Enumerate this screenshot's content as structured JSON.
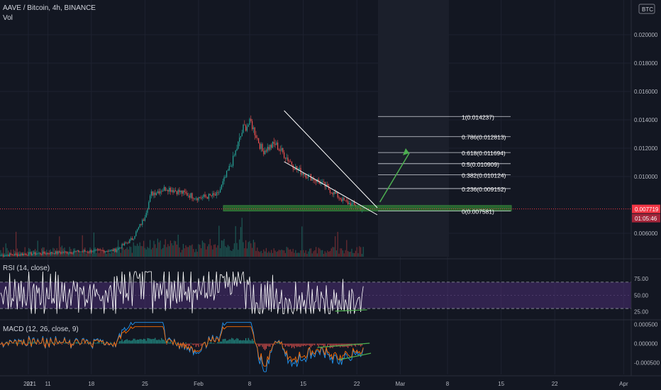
{
  "header": {
    "title": "AAVE / Bitcoin, 4h, BINANCE",
    "vol_label": "Vol",
    "currency_badge": "BTC"
  },
  "price_axis": {
    "ticks": [
      "0.020000",
      "0.018000",
      "0.016000",
      "0.014000",
      "0.012000",
      "0.010000",
      "0.006000"
    ],
    "tick_values": [
      0.02,
      0.018,
      0.016,
      0.014,
      0.012,
      0.01,
      0.006
    ],
    "ylim": [
      0.0043,
      0.0222
    ],
    "last_price": "0.007719",
    "countdown": "01:05:46"
  },
  "time_axis": {
    "labels": [
      "21",
      "2021",
      "11",
      "18",
      "25",
      "Feb",
      "8",
      "15",
      "22",
      "Mar",
      "8",
      "15",
      "22",
      "Apr"
    ],
    "label_bar_index": [
      -100,
      -17,
      37,
      71,
      113,
      155,
      195,
      237,
      279,
      313,
      350,
      392,
      434,
      488
    ]
  },
  "fib_levels": [
    {
      "label": "1(0.014237)",
      "value": 0.014237
    },
    {
      "label": "0.786(0.012813)",
      "value": 0.012813
    },
    {
      "label": "0.618(0.011694)",
      "value": 0.011694
    },
    {
      "label": "0.5(0.010909)",
      "value": 0.010909
    },
    {
      "label": "0.382(0.010124)",
      "value": 0.010124
    },
    {
      "label": "0.236(0.009152)",
      "value": 0.009152
    },
    {
      "label": "0(0.007581)",
      "value": 0.007581
    }
  ],
  "support_zone": {
    "from": 0.00757,
    "to": 0.00796
  },
  "channel": {
    "upper": [
      [
        222,
        0.01465
      ],
      [
        295,
        0.0078
      ]
    ],
    "lower": [
      [
        222,
        0.01105
      ],
      [
        295,
        0.0073
      ]
    ]
  },
  "arrow": {
    "from": [
      297,
      0.0082
    ],
    "to": [
      320,
      0.01165
    ]
  },
  "rsi": {
    "label": "RSI (14, close)",
    "ticks": [
      "75.00",
      "50.00",
      "25.00"
    ],
    "band": [
      30,
      70
    ],
    "ylim": [
      15,
      100
    ]
  },
  "macd": {
    "label": "MACD (12, 26, close, 9)",
    "ticks": [
      "0.000500",
      "0.000000",
      "-0.000500"
    ],
    "ylim": [
      -0.0008,
      0.0006
    ]
  },
  "colors": {
    "background": "#131722",
    "up": "#26a69a",
    "down": "#ef5350",
    "rsi_band": "#4a2d73",
    "support": "#2e7d32",
    "fib_line": "#d1d4dc",
    "price_label_bg": "#f23645",
    "arrow": "#4caf50"
  },
  "chart_data": {
    "type": "candlestick",
    "title": "AAVE / Bitcoin, 4h, BINANCE",
    "ylim": [
      0.0043,
      0.0222
    ],
    "x_axis_labels": [
      "21",
      "2021",
      "11",
      "18",
      "25",
      "Feb",
      "8",
      "15",
      "22",
      "Mar",
      "8",
      "15",
      "22",
      "Apr"
    ],
    "key_points": [
      {
        "bar": 0,
        "close": 0.00445
      },
      {
        "bar": 60,
        "close": 0.0047
      },
      {
        "bar": 90,
        "close": 0.0048
      },
      {
        "bar": 103,
        "close": 0.0056
      },
      {
        "bar": 112,
        "close": 0.007
      },
      {
        "bar": 118,
        "close": 0.0088
      },
      {
        "bar": 130,
        "close": 0.0092
      },
      {
        "bar": 155,
        "close": 0.0085
      },
      {
        "bar": 170,
        "close": 0.0087
      },
      {
        "bar": 182,
        "close": 0.0112
      },
      {
        "bar": 190,
        "close": 0.0134
      },
      {
        "bar": 196,
        "close": 0.0138
      },
      {
        "bar": 205,
        "close": 0.0118
      },
      {
        "bar": 215,
        "close": 0.0123
      },
      {
        "bar": 232,
        "close": 0.0105
      },
      {
        "bar": 250,
        "close": 0.0096
      },
      {
        "bar": 270,
        "close": 0.0082
      },
      {
        "bar": 284,
        "close": 0.00772
      }
    ]
  }
}
